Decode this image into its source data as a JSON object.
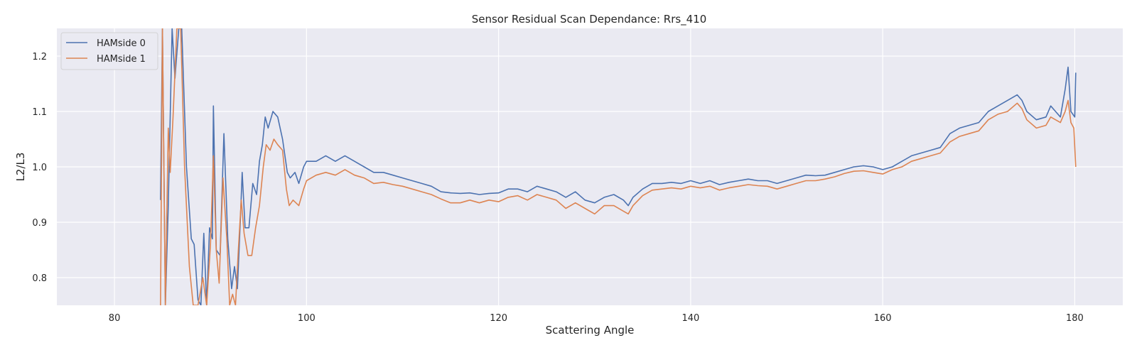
{
  "chart_data": {
    "type": "line",
    "title": "Sensor Residual Scan Dependance: Rrs_410",
    "xlabel": "Scattering Angle",
    "ylabel": "L2/L3",
    "xlim": [
      74,
      185
    ],
    "ylim": [
      0.75,
      1.25
    ],
    "xticks": [
      80,
      100,
      120,
      140,
      160,
      180
    ],
    "xtick_labels": [
      "80",
      "100",
      "120",
      "140",
      "160",
      "180"
    ],
    "yticks": [
      0.8,
      0.9,
      1.0,
      1.1,
      1.2
    ],
    "ytick_labels": [
      "0.8",
      "0.9",
      "1.0",
      "1.1",
      "1.2"
    ],
    "grid": true,
    "legend_position": "upper-left",
    "background": "#eaeaf2",
    "series": [
      {
        "name": "HAMside 0",
        "color": "#4c72b0",
        "points": [
          [
            84.8,
            0.94
          ],
          [
            85.0,
            1.25
          ],
          [
            85.3,
            0.75
          ],
          [
            85.6,
            0.93
          ],
          [
            86.0,
            1.25
          ],
          [
            86.3,
            1.16
          ],
          [
            86.7,
            1.25
          ],
          [
            87.0,
            1.25
          ],
          [
            87.5,
            1.0
          ],
          [
            88.0,
            0.87
          ],
          [
            88.3,
            0.86
          ],
          [
            88.7,
            0.76
          ],
          [
            89.0,
            0.75
          ],
          [
            89.3,
            0.88
          ],
          [
            89.6,
            0.75
          ],
          [
            89.9,
            0.89
          ],
          [
            90.2,
            0.87
          ],
          [
            90.3,
            1.11
          ],
          [
            90.6,
            0.85
          ],
          [
            91.0,
            0.84
          ],
          [
            91.4,
            1.06
          ],
          [
            91.8,
            0.87
          ],
          [
            92.2,
            0.78
          ],
          [
            92.5,
            0.82
          ],
          [
            92.8,
            0.78
          ],
          [
            93.1,
            0.9
          ],
          [
            93.3,
            0.99
          ],
          [
            93.6,
            0.89
          ],
          [
            94.0,
            0.89
          ],
          [
            94.4,
            0.97
          ],
          [
            94.8,
            0.95
          ],
          [
            95.1,
            1.01
          ],
          [
            95.4,
            1.04
          ],
          [
            95.7,
            1.09
          ],
          [
            96.0,
            1.07
          ],
          [
            96.5,
            1.1
          ],
          [
            97.0,
            1.09
          ],
          [
            97.5,
            1.05
          ],
          [
            98.0,
            0.99
          ],
          [
            98.3,
            0.98
          ],
          [
            98.8,
            0.99
          ],
          [
            99.2,
            0.97
          ],
          [
            99.7,
            1.0
          ],
          [
            100.0,
            1.01
          ],
          [
            101.0,
            1.01
          ],
          [
            102.0,
            1.02
          ],
          [
            103.0,
            1.01
          ],
          [
            104.0,
            1.02
          ],
          [
            105.0,
            1.01
          ],
          [
            106.0,
            1.0
          ],
          [
            107.0,
            0.99
          ],
          [
            108.0,
            0.99
          ],
          [
            109.0,
            0.985
          ],
          [
            110.0,
            0.98
          ],
          [
            111.0,
            0.975
          ],
          [
            112.0,
            0.97
          ],
          [
            113.0,
            0.965
          ],
          [
            114.0,
            0.955
          ],
          [
            115.0,
            0.953
          ],
          [
            116.0,
            0.952
          ],
          [
            117.0,
            0.953
          ],
          [
            118.0,
            0.95
          ],
          [
            119.0,
            0.952
          ],
          [
            120.0,
            0.953
          ],
          [
            121.0,
            0.96
          ],
          [
            122.0,
            0.96
          ],
          [
            123.0,
            0.955
          ],
          [
            124.0,
            0.965
          ],
          [
            125.0,
            0.96
          ],
          [
            126.0,
            0.955
          ],
          [
            127.0,
            0.945
          ],
          [
            128.0,
            0.955
          ],
          [
            129.0,
            0.94
          ],
          [
            130.0,
            0.935
          ],
          [
            131.0,
            0.945
          ],
          [
            132.0,
            0.95
          ],
          [
            133.0,
            0.94
          ],
          [
            133.5,
            0.93
          ],
          [
            134.0,
            0.945
          ],
          [
            135.0,
            0.96
          ],
          [
            136.0,
            0.97
          ],
          [
            137.0,
            0.97
          ],
          [
            138.0,
            0.972
          ],
          [
            139.0,
            0.97
          ],
          [
            140.0,
            0.975
          ],
          [
            141.0,
            0.97
          ],
          [
            142.0,
            0.975
          ],
          [
            143.0,
            0.968
          ],
          [
            144.0,
            0.972
          ],
          [
            145.0,
            0.975
          ],
          [
            146.0,
            0.978
          ],
          [
            147.0,
            0.975
          ],
          [
            148.0,
            0.975
          ],
          [
            149.0,
            0.97
          ],
          [
            150.0,
            0.975
          ],
          [
            151.0,
            0.98
          ],
          [
            152.0,
            0.985
          ],
          [
            153.0,
            0.984
          ],
          [
            154.0,
            0.985
          ],
          [
            155.0,
            0.99
          ],
          [
            156.0,
            0.995
          ],
          [
            157.0,
            1.0
          ],
          [
            158.0,
            1.002
          ],
          [
            159.0,
            1.0
          ],
          [
            160.0,
            0.995
          ],
          [
            161.0,
            1.0
          ],
          [
            162.0,
            1.01
          ],
          [
            163.0,
            1.02
          ],
          [
            164.0,
            1.025
          ],
          [
            165.0,
            1.03
          ],
          [
            166.0,
            1.035
          ],
          [
            167.0,
            1.06
          ],
          [
            168.0,
            1.07
          ],
          [
            169.0,
            1.075
          ],
          [
            170.0,
            1.08
          ],
          [
            171.0,
            1.1
          ],
          [
            172.0,
            1.11
          ],
          [
            173.0,
            1.12
          ],
          [
            174.0,
            1.13
          ],
          [
            174.5,
            1.12
          ],
          [
            175.0,
            1.1
          ],
          [
            176.0,
            1.085
          ],
          [
            177.0,
            1.09
          ],
          [
            177.5,
            1.11
          ],
          [
            178.0,
            1.1
          ],
          [
            178.5,
            1.09
          ],
          [
            179.0,
            1.14
          ],
          [
            179.3,
            1.18
          ],
          [
            179.6,
            1.1
          ],
          [
            180.0,
            1.09
          ],
          [
            180.1,
            1.17
          ]
        ]
      },
      {
        "name": "HAMside 1",
        "color": "#dd8452",
        "points": [
          [
            84.8,
            0.75
          ],
          [
            85.0,
            1.25
          ],
          [
            85.3,
            0.75
          ],
          [
            85.6,
            1.07
          ],
          [
            85.8,
            0.99
          ],
          [
            86.1,
            1.09
          ],
          [
            86.5,
            1.25
          ],
          [
            86.9,
            1.25
          ],
          [
            87.3,
            1.0
          ],
          [
            87.8,
            0.82
          ],
          [
            88.2,
            0.75
          ],
          [
            88.7,
            0.75
          ],
          [
            89.2,
            0.8
          ],
          [
            89.6,
            0.75
          ],
          [
            90.0,
            0.86
          ],
          [
            90.3,
            1.02
          ],
          [
            90.6,
            0.85
          ],
          [
            90.9,
            0.79
          ],
          [
            91.3,
            0.98
          ],
          [
            91.7,
            0.87
          ],
          [
            92.0,
            0.75
          ],
          [
            92.3,
            0.77
          ],
          [
            92.6,
            0.75
          ],
          [
            92.9,
            0.85
          ],
          [
            93.2,
            0.94
          ],
          [
            93.5,
            0.88
          ],
          [
            93.9,
            0.84
          ],
          [
            94.3,
            0.84
          ],
          [
            94.7,
            0.89
          ],
          [
            95.1,
            0.93
          ],
          [
            95.5,
            1.0
          ],
          [
            95.8,
            1.04
          ],
          [
            96.2,
            1.03
          ],
          [
            96.6,
            1.05
          ],
          [
            97.0,
            1.04
          ],
          [
            97.5,
            1.03
          ],
          [
            97.9,
            0.96
          ],
          [
            98.2,
            0.93
          ],
          [
            98.6,
            0.94
          ],
          [
            99.2,
            0.93
          ],
          [
            99.7,
            0.96
          ],
          [
            100.0,
            0.975
          ],
          [
            101.0,
            0.985
          ],
          [
            102.0,
            0.99
          ],
          [
            103.0,
            0.985
          ],
          [
            104.0,
            0.995
          ],
          [
            105.0,
            0.985
          ],
          [
            106.0,
            0.98
          ],
          [
            107.0,
            0.97
          ],
          [
            108.0,
            0.972
          ],
          [
            109.0,
            0.968
          ],
          [
            110.0,
            0.965
          ],
          [
            111.0,
            0.96
          ],
          [
            112.0,
            0.955
          ],
          [
            113.0,
            0.95
          ],
          [
            114.0,
            0.942
          ],
          [
            115.0,
            0.935
          ],
          [
            116.0,
            0.935
          ],
          [
            117.0,
            0.94
          ],
          [
            118.0,
            0.935
          ],
          [
            119.0,
            0.94
          ],
          [
            120.0,
            0.937
          ],
          [
            121.0,
            0.945
          ],
          [
            122.0,
            0.948
          ],
          [
            123.0,
            0.94
          ],
          [
            124.0,
            0.95
          ],
          [
            125.0,
            0.945
          ],
          [
            126.0,
            0.94
          ],
          [
            127.0,
            0.925
          ],
          [
            128.0,
            0.935
          ],
          [
            129.0,
            0.925
          ],
          [
            130.0,
            0.915
          ],
          [
            131.0,
            0.93
          ],
          [
            132.0,
            0.93
          ],
          [
            133.0,
            0.92
          ],
          [
            133.5,
            0.915
          ],
          [
            134.0,
            0.93
          ],
          [
            135.0,
            0.948
          ],
          [
            136.0,
            0.958
          ],
          [
            137.0,
            0.96
          ],
          [
            138.0,
            0.962
          ],
          [
            139.0,
            0.96
          ],
          [
            140.0,
            0.965
          ],
          [
            141.0,
            0.962
          ],
          [
            142.0,
            0.965
          ],
          [
            143.0,
            0.958
          ],
          [
            144.0,
            0.962
          ],
          [
            145.0,
            0.965
          ],
          [
            146.0,
            0.968
          ],
          [
            147.0,
            0.966
          ],
          [
            148.0,
            0.965
          ],
          [
            149.0,
            0.96
          ],
          [
            150.0,
            0.965
          ],
          [
            151.0,
            0.97
          ],
          [
            152.0,
            0.975
          ],
          [
            153.0,
            0.975
          ],
          [
            154.0,
            0.978
          ],
          [
            155.0,
            0.982
          ],
          [
            156.0,
            0.988
          ],
          [
            157.0,
            0.992
          ],
          [
            158.0,
            0.993
          ],
          [
            159.0,
            0.99
          ],
          [
            160.0,
            0.987
          ],
          [
            161.0,
            0.995
          ],
          [
            162.0,
            1.0
          ],
          [
            163.0,
            1.01
          ],
          [
            164.0,
            1.015
          ],
          [
            165.0,
            1.02
          ],
          [
            166.0,
            1.025
          ],
          [
            167.0,
            1.045
          ],
          [
            168.0,
            1.055
          ],
          [
            169.0,
            1.06
          ],
          [
            170.0,
            1.065
          ],
          [
            171.0,
            1.085
          ],
          [
            172.0,
            1.095
          ],
          [
            173.0,
            1.1
          ],
          [
            174.0,
            1.115
          ],
          [
            174.5,
            1.105
          ],
          [
            175.0,
            1.085
          ],
          [
            176.0,
            1.07
          ],
          [
            177.0,
            1.075
          ],
          [
            177.5,
            1.09
          ],
          [
            178.0,
            1.085
          ],
          [
            178.5,
            1.08
          ],
          [
            179.0,
            1.1
          ],
          [
            179.3,
            1.12
          ],
          [
            179.6,
            1.08
          ],
          [
            179.9,
            1.07
          ],
          [
            180.1,
            1.0
          ]
        ]
      }
    ]
  }
}
